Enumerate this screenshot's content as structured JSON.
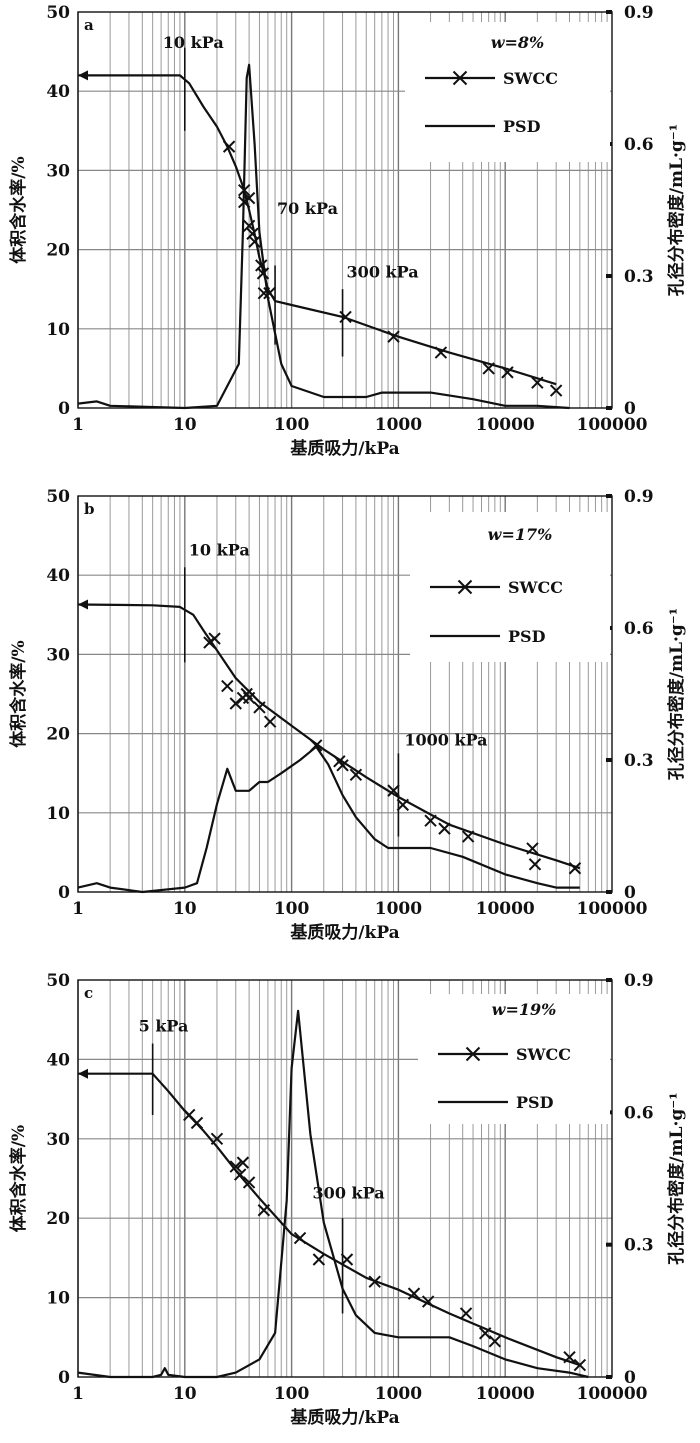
{
  "chart_data": [
    {
      "type": "line",
      "panel": "a",
      "xlabel": "基质吸力/kPa",
      "ylabel": "体积含水率/%",
      "y2label": "孔径分布密度/mL·g⁻¹",
      "xscale": "log",
      "xlim": [
        1,
        100000
      ],
      "ylim": [
        0,
        50
      ],
      "y2lim": [
        0,
        0.9
      ],
      "xticks": [
        "1",
        "10",
        "100",
        "1000",
        "10000",
        "100000"
      ],
      "yticks": [
        "0",
        "10",
        "20",
        "30",
        "40",
        "50"
      ],
      "y2ticks": [
        "0",
        "0.3",
        "0.6",
        "0.9"
      ],
      "grid": true,
      "legend_title": "w=8%",
      "legend_position": "top-right",
      "annotations": [
        {
          "text": "10 kPa",
          "x": 10
        },
        {
          "text": "70 kPa",
          "x": 70
        },
        {
          "text": "300 kPa",
          "x": 300
        }
      ],
      "series": [
        {
          "name": "SWCC",
          "axis": "left",
          "line": [
            [
              1,
              42
            ],
            [
              5,
              42
            ],
            [
              9,
              42
            ],
            [
              11,
              41
            ],
            [
              15,
              38
            ],
            [
              20,
              35.5
            ],
            [
              25,
              33
            ],
            [
              30,
              30.5
            ],
            [
              35,
              28
            ],
            [
              40,
              25
            ],
            [
              45,
              22
            ],
            [
              50,
              19
            ],
            [
              55,
              17
            ],
            [
              60,
              15
            ],
            [
              70,
              13.5
            ],
            [
              100,
              13
            ],
            [
              300,
              11.5
            ],
            [
              1000,
              9
            ],
            [
              3000,
              7
            ],
            [
              10000,
              5
            ],
            [
              30000,
              3
            ]
          ],
          "points": [
            [
              26,
              33
            ],
            [
              36,
              27.5
            ],
            [
              36,
              26
            ],
            [
              40,
              26.5
            ],
            [
              40,
              23
            ],
            [
              43,
              22
            ],
            [
              45,
              21
            ],
            [
              52,
              18
            ],
            [
              54,
              17
            ],
            [
              55,
              14.5
            ],
            [
              62,
              14.5
            ],
            [
              320,
              11.5
            ],
            [
              900,
              9
            ],
            [
              2500,
              7
            ],
            [
              7000,
              5
            ],
            [
              10500,
              4.5
            ],
            [
              20000,
              3.2
            ],
            [
              30000,
              2.2
            ]
          ]
        },
        {
          "name": "PSD",
          "axis": "right",
          "line": [
            [
              1,
              0.01
            ],
            [
              1.5,
              0.015
            ],
            [
              2,
              0.005
            ],
            [
              4,
              0.003
            ],
            [
              10,
              0
            ],
            [
              20,
              0.005
            ],
            [
              25,
              0.05
            ],
            [
              32,
              0.1
            ],
            [
              35,
              0.4
            ],
            [
              38,
              0.75
            ],
            [
              40,
              0.78
            ],
            [
              45,
              0.6
            ],
            [
              50,
              0.4
            ],
            [
              60,
              0.25
            ],
            [
              80,
              0.1
            ],
            [
              100,
              0.05
            ],
            [
              200,
              0.025
            ],
            [
              500,
              0.025
            ],
            [
              700,
              0.035
            ],
            [
              2000,
              0.035
            ],
            [
              5000,
              0.02
            ],
            [
              10000,
              0.005
            ],
            [
              20000,
              0.005
            ],
            [
              40000,
              0
            ]
          ]
        }
      ]
    },
    {
      "type": "line",
      "panel": "b",
      "xlabel": "基质吸力/kPa",
      "ylabel": "体积含水率/%",
      "y2label": "孔径分布密度/mL·g⁻¹",
      "xscale": "log",
      "xlim": [
        1,
        100000
      ],
      "ylim": [
        0,
        50
      ],
      "y2lim": [
        0,
        0.9
      ],
      "xticks": [
        "1",
        "10",
        "100",
        "1000",
        "10000",
        "100000"
      ],
      "yticks": [
        "0",
        "10",
        "20",
        "30",
        "40",
        "50"
      ],
      "y2ticks": [
        "0",
        "0.3",
        "0.6",
        "0.9"
      ],
      "grid": true,
      "legend_title": "w=17%",
      "legend_position": "top-right",
      "annotations": [
        {
          "text": "10 kPa",
          "x": 10
        },
        {
          "text": "1000 kPa",
          "x": 1000
        }
      ],
      "series": [
        {
          "name": "SWCC",
          "axis": "left",
          "line": [
            [
              1,
              36.3
            ],
            [
              5,
              36.2
            ],
            [
              9,
              36
            ],
            [
              12,
              35
            ],
            [
              15,
              33
            ],
            [
              20,
              30.5
            ],
            [
              30,
              27
            ],
            [
              50,
              24
            ],
            [
              100,
              21
            ],
            [
              200,
              18
            ],
            [
              500,
              14.5
            ],
            [
              1000,
              12
            ],
            [
              3000,
              8.5
            ],
            [
              10000,
              6
            ],
            [
              30000,
              4
            ],
            [
              50000,
              3
            ]
          ],
          "points": [
            [
              17,
              31.5
            ],
            [
              19,
              32
            ],
            [
              25,
              26
            ],
            [
              30,
              23.8
            ],
            [
              35,
              24.5
            ],
            [
              38,
              25
            ],
            [
              40,
              24.5
            ],
            [
              50,
              23.3
            ],
            [
              63,
              21.5
            ],
            [
              170,
              18.5
            ],
            [
              280,
              16.5
            ],
            [
              300,
              16
            ],
            [
              400,
              14.8
            ],
            [
              900,
              12.8
            ],
            [
              1100,
              11
            ],
            [
              2000,
              9
            ],
            [
              2700,
              8
            ],
            [
              4500,
              7
            ],
            [
              18000,
              5.5
            ],
            [
              19000,
              3.5
            ],
            [
              45000,
              3
            ]
          ]
        },
        {
          "name": "PSD",
          "axis": "right",
          "line": [
            [
              1,
              0.01
            ],
            [
              1.5,
              0.02
            ],
            [
              2,
              0.01
            ],
            [
              4,
              0
            ],
            [
              10,
              0.01
            ],
            [
              13,
              0.02
            ],
            [
              16,
              0.1
            ],
            [
              20,
              0.2
            ],
            [
              25,
              0.28
            ],
            [
              30,
              0.23
            ],
            [
              40,
              0.23
            ],
            [
              50,
              0.25
            ],
            [
              60,
              0.25
            ],
            [
              80,
              0.27
            ],
            [
              120,
              0.3
            ],
            [
              170,
              0.33
            ],
            [
              220,
              0.29
            ],
            [
              300,
              0.22
            ],
            [
              400,
              0.17
            ],
            [
              600,
              0.12
            ],
            [
              800,
              0.1
            ],
            [
              2000,
              0.1
            ],
            [
              4000,
              0.08
            ],
            [
              10000,
              0.04
            ],
            [
              20000,
              0.02
            ],
            [
              30000,
              0.01
            ],
            [
              50000,
              0.01
            ]
          ]
        }
      ]
    },
    {
      "type": "line",
      "panel": "c",
      "xlabel": "基质吸力/kPa",
      "ylabel": "体积含水率/%",
      "y2label": "孔径分布密度/mL·g⁻¹",
      "xscale": "log",
      "xlim": [
        1,
        100000
      ],
      "ylim": [
        0,
        50
      ],
      "y2lim": [
        0,
        0.9
      ],
      "xticks": [
        "1",
        "10",
        "100",
        "1000",
        "10000",
        "100000"
      ],
      "yticks": [
        "0",
        "10",
        "20",
        "30",
        "40",
        "50"
      ],
      "y2ticks": [
        "0",
        "0.3",
        "0.6",
        "0.9"
      ],
      "grid": true,
      "legend_title": "w=19%",
      "legend_position": "top-right",
      "annotations": [
        {
          "text": "5 kPa",
          "x": 5
        },
        {
          "text": "300 kPa",
          "x": 300
        }
      ],
      "series": [
        {
          "name": "SWCC",
          "axis": "left",
          "line": [
            [
              1,
              38.2
            ],
            [
              3,
              38.2
            ],
            [
              5,
              38.2
            ],
            [
              7,
              36
            ],
            [
              10,
              33.5
            ],
            [
              15,
              31
            ],
            [
              20,
              29
            ],
            [
              30,
              26
            ],
            [
              50,
              22.5
            ],
            [
              100,
              18
            ],
            [
              200,
              15.5
            ],
            [
              500,
              12.5
            ],
            [
              1000,
              11
            ],
            [
              3000,
              8
            ],
            [
              10000,
              5
            ],
            [
              30000,
              2.5
            ],
            [
              50000,
              1.5
            ]
          ],
          "points": [
            [
              11,
              33
            ],
            [
              13,
              32
            ],
            [
              20,
              30
            ],
            [
              30,
              26.5
            ],
            [
              33,
              25.5
            ],
            [
              35,
              27
            ],
            [
              40,
              24.5
            ],
            [
              55,
              21
            ],
            [
              120,
              17.5
            ],
            [
              180,
              14.8
            ],
            [
              330,
              14.8
            ],
            [
              600,
              12
            ],
            [
              1400,
              10.5
            ],
            [
              1900,
              9.5
            ],
            [
              4300,
              8
            ],
            [
              6500,
              5.5
            ],
            [
              8000,
              4.5
            ],
            [
              40000,
              2.5
            ],
            [
              50000,
              1.5
            ]
          ]
        },
        {
          "name": "PSD",
          "axis": "right",
          "line": [
            [
              1,
              0.01
            ],
            [
              2,
              0
            ],
            [
              5,
              0
            ],
            [
              6,
              0.005
            ],
            [
              6.5,
              0.02
            ],
            [
              7,
              0.005
            ],
            [
              10,
              0
            ],
            [
              20,
              0
            ],
            [
              30,
              0.01
            ],
            [
              50,
              0.04
            ],
            [
              70,
              0.1
            ],
            [
              90,
              0.4
            ],
            [
              100,
              0.7
            ],
            [
              115,
              0.83
            ],
            [
              130,
              0.7
            ],
            [
              150,
              0.55
            ],
            [
              200,
              0.35
            ],
            [
              300,
              0.2
            ],
            [
              400,
              0.14
            ],
            [
              600,
              0.1
            ],
            [
              1000,
              0.09
            ],
            [
              3000,
              0.09
            ],
            [
              5000,
              0.07
            ],
            [
              10000,
              0.04
            ],
            [
              20000,
              0.02
            ],
            [
              40000,
              0.01
            ],
            [
              60000,
              0
            ]
          ]
        }
      ]
    }
  ]
}
